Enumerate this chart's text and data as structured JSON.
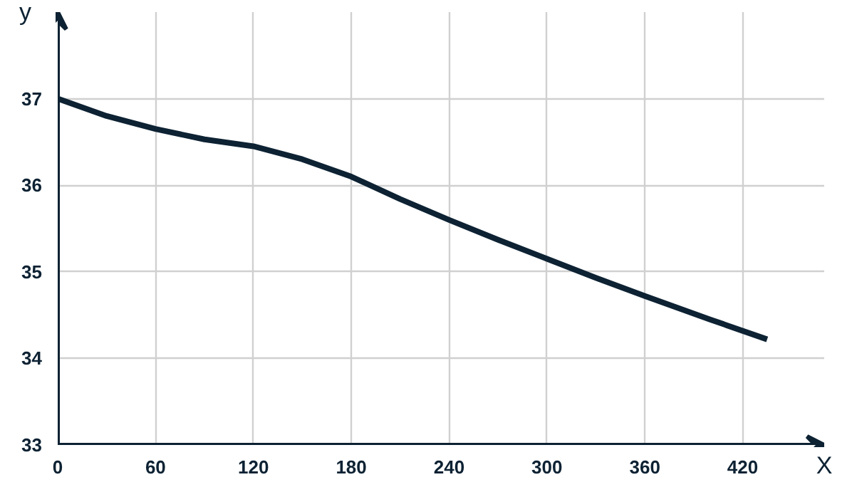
{
  "chart_data": {
    "type": "line",
    "xlabel": "X",
    "ylabel": "y",
    "x": [
      0,
      30,
      60,
      90,
      120,
      150,
      180,
      210,
      240,
      270,
      300,
      330,
      360,
      400,
      435
    ],
    "series": [
      {
        "color": "#0d2233",
        "values": [
          37.0,
          36.8,
          36.65,
          36.53,
          36.45,
          36.3,
          36.1,
          35.84,
          35.6,
          35.37,
          35.15,
          34.93,
          34.72,
          34.45,
          34.22
        ]
      }
    ],
    "xlim": [
      0,
      470
    ],
    "ylim": [
      33,
      38
    ],
    "xticks": [
      0,
      60,
      120,
      180,
      240,
      300,
      360,
      420
    ],
    "yticks": [
      33,
      34,
      35,
      36,
      37
    ],
    "grid": true,
    "marker": "none",
    "line_style": "solid"
  }
}
